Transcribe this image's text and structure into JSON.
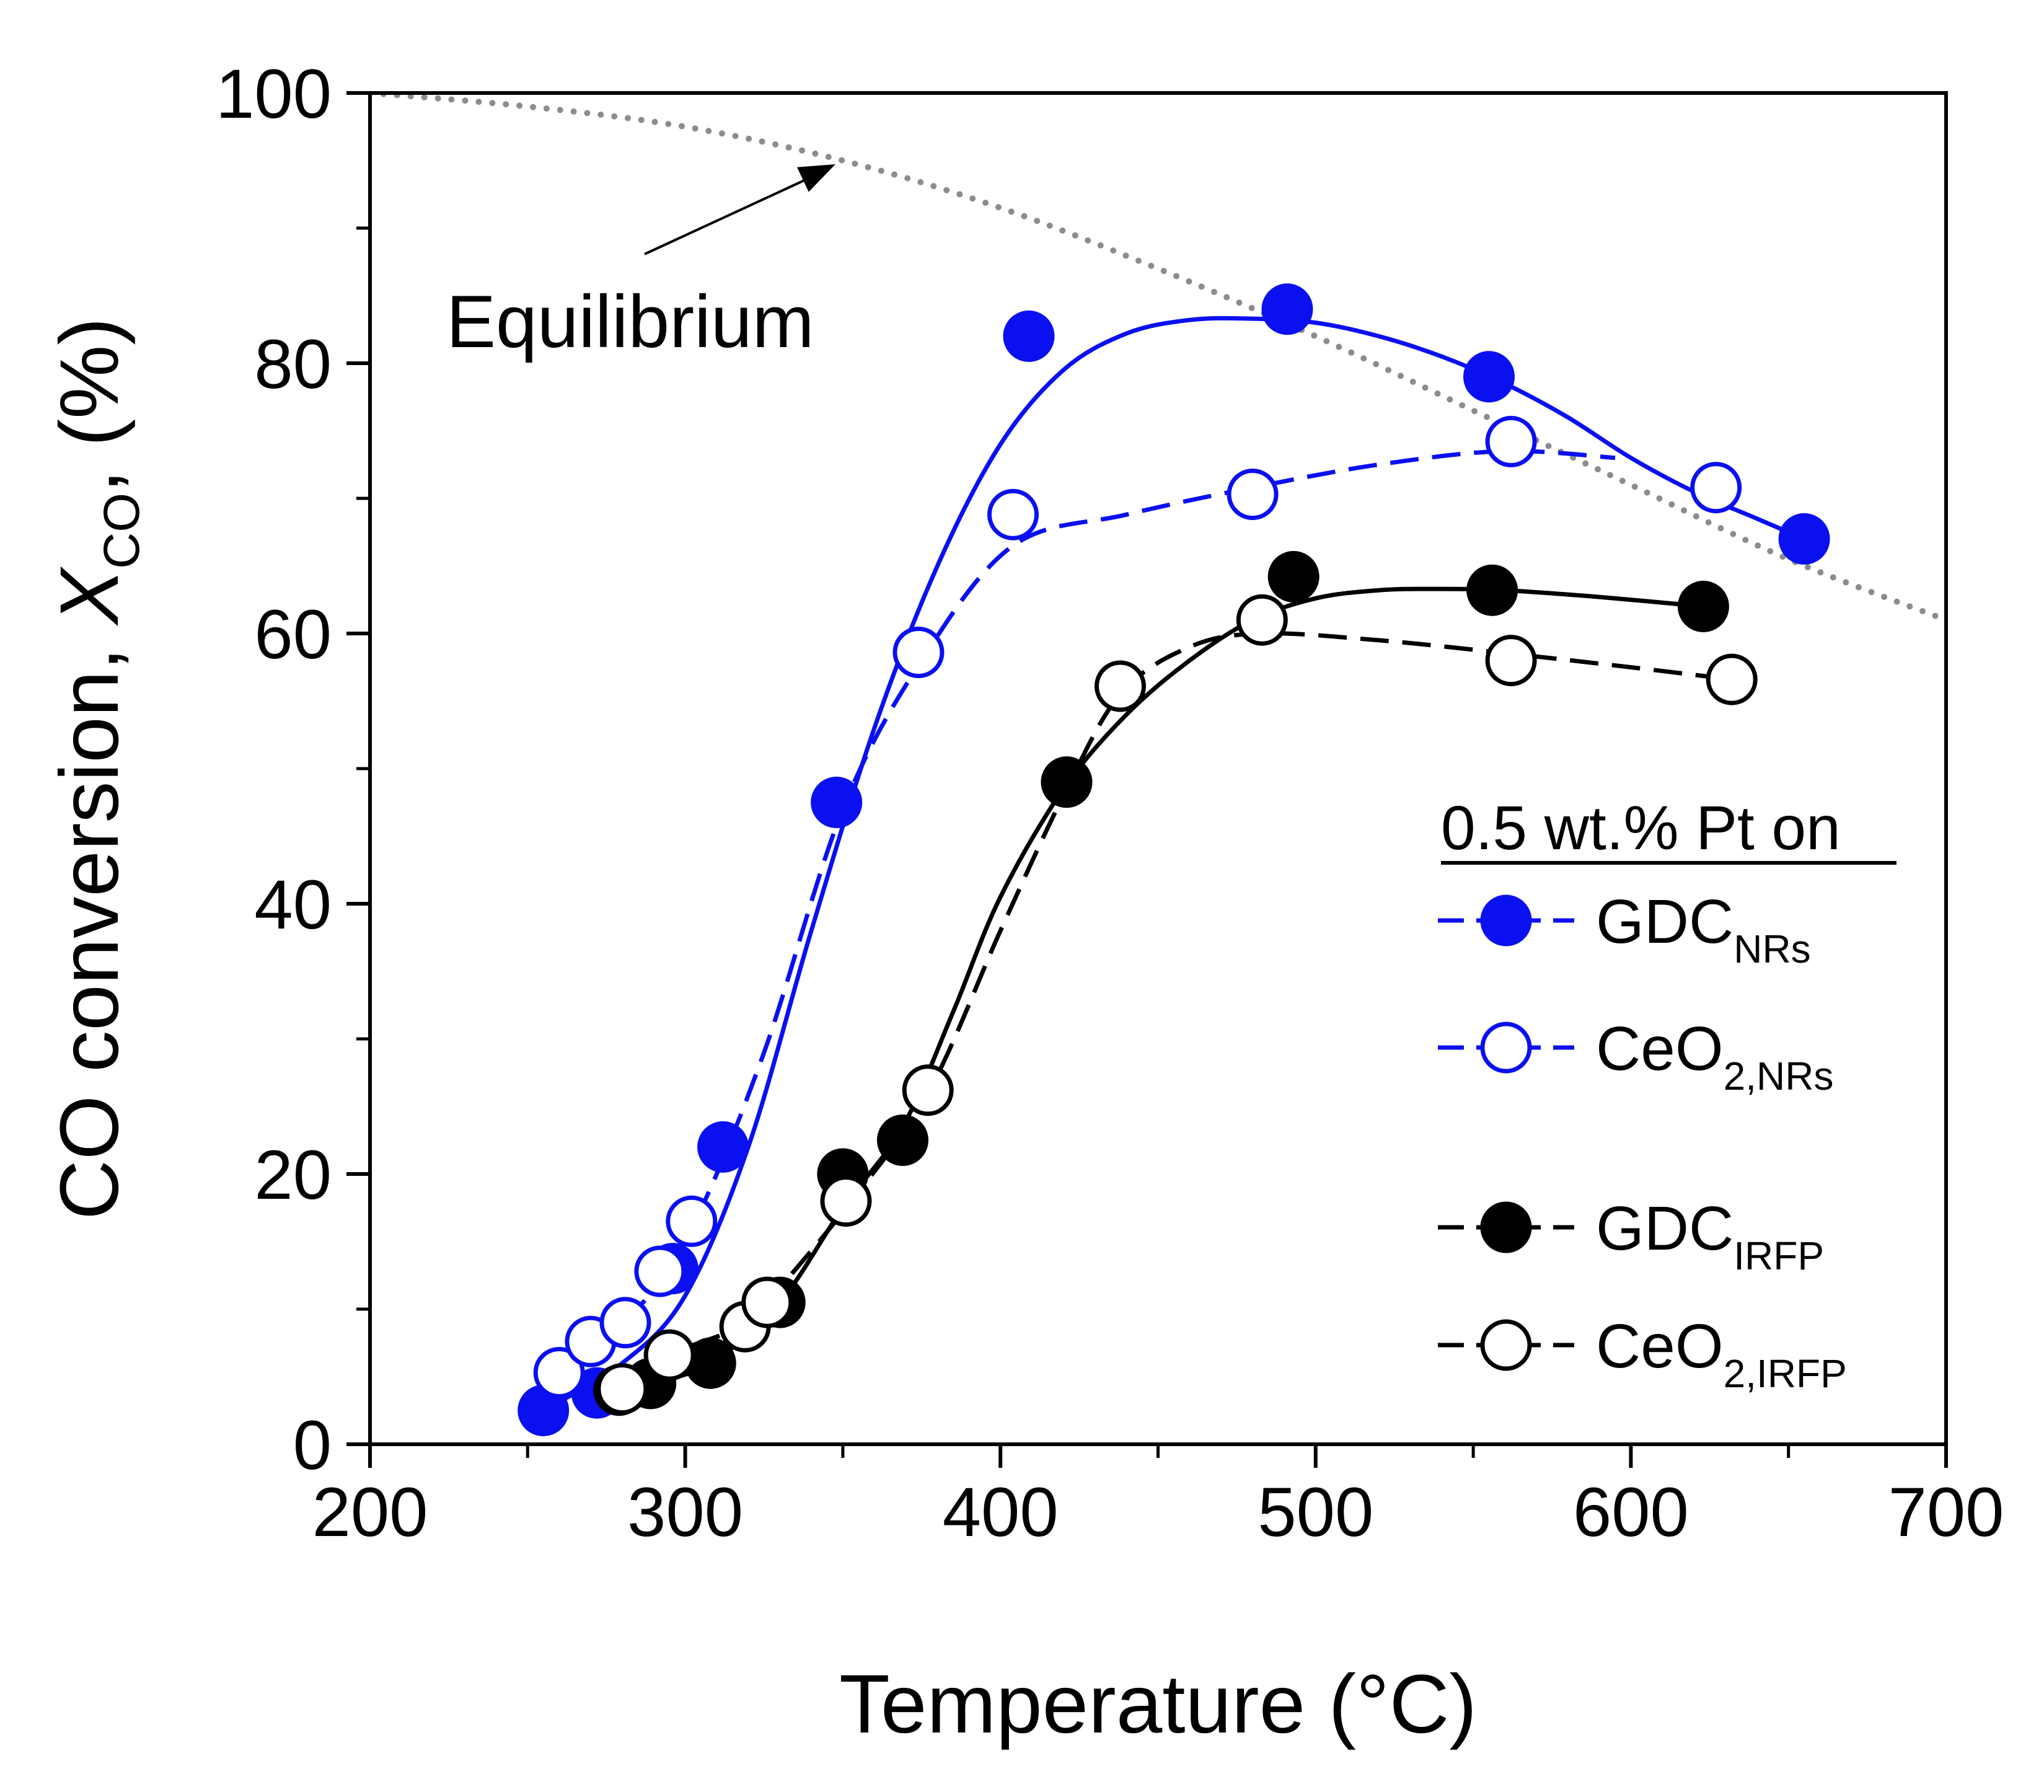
{
  "chart_data": {
    "type": "scatter",
    "title": "",
    "xlabel": "Temperature (°C)",
    "ylabel_parts": {
      "prefix": "CO conversion, ",
      "symbol": "X",
      "subscript": "CO",
      "suffix": ", (%)"
    },
    "xlim": [
      200,
      700
    ],
    "ylim": [
      0,
      100
    ],
    "x_major_ticks": [
      200,
      300,
      400,
      500,
      600,
      700
    ],
    "x_minor_ticks": [
      250,
      350,
      450,
      550,
      650
    ],
    "y_major_ticks": [
      0,
      20,
      40,
      60,
      80,
      100
    ],
    "y_minor_ticks": [
      10,
      30,
      50,
      70,
      90
    ],
    "grid": false,
    "legend": {
      "placement": "right-middle",
      "title": "0.5 wt.% Pt on"
    },
    "annotation": {
      "text": "Equilibrium",
      "arrow_points_to": {
        "x": 350,
        "y": 95
      }
    },
    "equilibrium": {
      "name": "Equilibrium",
      "color": "#8c8c8c",
      "style": "dotted",
      "x": [
        200,
        250,
        300,
        350,
        400,
        450,
        500,
        550,
        600,
        650,
        700
      ],
      "y": [
        100,
        99,
        97.5,
        95,
        91.5,
        87,
        82,
        76.5,
        71,
        65.5,
        61
      ]
    },
    "series": [
      {
        "name_main": "GDC",
        "name_sub": "NRs",
        "color": "#0a10f0",
        "fill": "filled",
        "line_style": "solid",
        "x": [
          255,
          272,
          296,
          312,
          348,
          409,
          491,
          555,
          655
        ],
        "y": [
          2.5,
          3.8,
          13,
          22,
          47.5,
          82,
          84,
          79,
          67
        ],
        "fit_x": [
          255,
          280,
          300,
          320,
          340,
          360,
          380,
          400,
          420,
          440,
          460,
          480,
          500,
          520,
          540,
          560,
          580,
          600,
          620,
          640,
          655
        ],
        "fit_y": [
          2.5,
          6,
          11,
          22,
          38,
          53,
          65,
          74,
          79.5,
          82.2,
          83.2,
          83.3,
          83,
          82,
          80.5,
          78.5,
          76,
          73,
          70.5,
          68.5,
          67
        ]
      },
      {
        "name_main": "CeO",
        "name_sub": "2,NRs",
        "color": "#0a10f0",
        "fill": "open",
        "line_style": "dashed",
        "x": [
          260,
          270,
          281,
          292,
          302,
          374,
          404,
          480,
          562,
          627
        ],
        "y": [
          5.3,
          7.6,
          9,
          12.8,
          16.5,
          58.6,
          68.8,
          70.3,
          74.2,
          70.8
        ],
        "fit_x": [
          260,
          281,
          302,
          325,
          350,
          375,
          404,
          440,
          480,
          520,
          560,
          595
        ],
        "fit_y": [
          5.3,
          9,
          16,
          29,
          47,
          58,
          66.5,
          68.8,
          70.8,
          72.5,
          73.5,
          73
        ]
      },
      {
        "name_main": "GDC",
        "name_sub": "IRFP",
        "color": "#000000",
        "fill": "filled",
        "line_style": "solid",
        "x": [
          279,
          289,
          308,
          330,
          350,
          369,
          421,
          493,
          556,
          623
        ],
        "y": [
          4,
          4.5,
          6,
          10.5,
          20,
          22.5,
          49,
          64.2,
          63.2,
          62
        ],
        "fit_x": [
          279,
          289,
          308,
          330,
          350,
          369,
          385,
          400,
          420,
          440,
          460,
          480,
          500,
          520,
          540,
          560,
          590,
          623
        ],
        "fit_y": [
          3.9,
          4.5,
          6,
          10.5,
          17.5,
          23.5,
          32,
          40.5,
          48.5,
          54,
          58,
          61,
          62.6,
          63.2,
          63.3,
          63.2,
          62.7,
          62
        ]
      },
      {
        "name_main": "CeO",
        "name_sub": "2,IRFP",
        "color": "#000000",
        "fill": "open",
        "line_style": "dashed",
        "x": [
          280,
          295,
          319,
          326,
          351,
          377,
          438,
          483,
          562,
          632
        ],
        "y": [
          4.1,
          6.6,
          8.7,
          10.5,
          18,
          26.2,
          56.1,
          61,
          58,
          56.6
        ],
        "fit_x": [
          280,
          295,
          319,
          326,
          351,
          377,
          400,
          420,
          438,
          460,
          483,
          520,
          562,
          600,
          632
        ],
        "fit_y": [
          4,
          6.6,
          8.8,
          10.5,
          17.5,
          26,
          38,
          48,
          55.5,
          59,
          60,
          59.5,
          58.5,
          57.5,
          56.6
        ]
      }
    ]
  }
}
